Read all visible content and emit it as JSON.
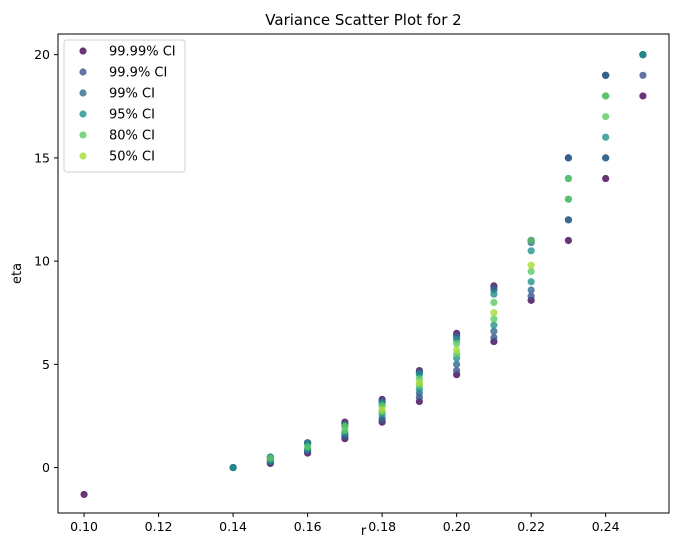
{
  "chart_data": {
    "type": "scatter",
    "title": "Variance Scatter Plot for 2",
    "xlabel": "r",
    "ylabel": "eta",
    "xlim": [
      0.093,
      0.257
    ],
    "ylim": [
      -2.2,
      21.0
    ],
    "xticks": [
      0.1,
      0.12,
      0.14,
      0.16,
      0.18,
      0.2,
      0.22,
      0.24
    ],
    "xtick_labels": [
      "0.10",
      "0.12",
      "0.14",
      "0.16",
      "0.18",
      "0.20",
      "0.22",
      "0.24"
    ],
    "yticks": [
      0,
      5,
      10,
      15,
      20
    ],
    "ytick_labels": [
      "0",
      "5",
      "10",
      "15",
      "20"
    ],
    "grid": false,
    "legend_position": "top-left",
    "series": [
      {
        "name": "99.99% CI",
        "color": "#440154",
        "x": [
          0.1,
          0.14,
          0.15,
          0.15,
          0.16,
          0.16,
          0.17,
          0.17,
          0.18,
          0.18,
          0.19,
          0.19,
          0.2,
          0.2,
          0.21,
          0.21,
          0.22,
          0.22,
          0.23,
          0.23,
          0.24,
          0.24,
          0.25,
          0.25
        ],
        "y": [
          -1.3,
          0.0,
          0.2,
          0.5,
          0.7,
          1.2,
          1.4,
          2.2,
          2.2,
          3.3,
          3.2,
          4.7,
          4.5,
          6.5,
          6.1,
          8.8,
          8.1,
          11.0,
          11.0,
          15.0,
          14.0,
          19.0,
          18.0,
          20.0
        ]
      },
      {
        "name": "99.9% CI",
        "color": "#3b528b",
        "x": [
          0.14,
          0.15,
          0.15,
          0.16,
          0.16,
          0.17,
          0.17,
          0.18,
          0.18,
          0.19,
          0.19,
          0.2,
          0.2,
          0.21,
          0.21,
          0.22,
          0.22,
          0.23,
          0.23,
          0.24,
          0.24,
          0.25,
          0.25
        ],
        "y": [
          0.0,
          0.25,
          0.5,
          0.8,
          1.2,
          1.5,
          2.1,
          2.3,
          3.2,
          3.4,
          4.6,
          4.7,
          6.4,
          6.3,
          8.7,
          8.3,
          11.0,
          12.0,
          15.0,
          15.0,
          19.0,
          19.0,
          20.0
        ]
      },
      {
        "name": "99% CI",
        "color": "#31688e",
        "x": [
          0.14,
          0.15,
          0.15,
          0.16,
          0.16,
          0.17,
          0.17,
          0.18,
          0.18,
          0.19,
          0.19,
          0.2,
          0.2,
          0.21,
          0.21,
          0.22,
          0.22,
          0.23,
          0.23,
          0.24,
          0.24,
          0.25
        ],
        "y": [
          0.0,
          0.3,
          0.5,
          0.85,
          1.2,
          1.6,
          2.1,
          2.4,
          3.2,
          3.6,
          4.6,
          5.0,
          6.3,
          6.6,
          8.6,
          8.6,
          10.9,
          12.0,
          15.0,
          15.0,
          19.0,
          20.0
        ]
      },
      {
        "name": "95% CI",
        "color": "#21918c",
        "x": [
          0.14,
          0.15,
          0.15,
          0.16,
          0.16,
          0.17,
          0.17,
          0.18,
          0.18,
          0.19,
          0.19,
          0.2,
          0.2,
          0.21,
          0.21,
          0.22,
          0.22,
          0.23,
          0.23,
          0.24,
          0.24,
          0.25
        ],
        "y": [
          0.0,
          0.35,
          0.5,
          0.9,
          1.15,
          1.7,
          2.0,
          2.6,
          3.1,
          3.8,
          4.5,
          5.3,
          6.2,
          6.9,
          8.4,
          9.0,
          10.5,
          13.0,
          14.0,
          16.0,
          18.0,
          20.0
        ]
      },
      {
        "name": "80% CI",
        "color": "#5ec962",
        "x": [
          0.15,
          0.16,
          0.17,
          0.17,
          0.18,
          0.18,
          0.19,
          0.19,
          0.2,
          0.2,
          0.21,
          0.21,
          0.22,
          0.22,
          0.23,
          0.23,
          0.24,
          0.24
        ],
        "y": [
          0.45,
          1.0,
          1.8,
          2.0,
          2.7,
          3.0,
          4.0,
          4.3,
          5.5,
          6.0,
          7.2,
          8.0,
          9.5,
          11.0,
          13.0,
          14.0,
          17.0,
          18.0
        ]
      },
      {
        "name": "50% CI",
        "color": "#a5db36",
        "x": [
          0.18,
          0.19,
          0.2,
          0.21,
          0.22
        ],
        "y": [
          2.8,
          4.1,
          5.7,
          7.5,
          9.8
        ]
      }
    ]
  }
}
